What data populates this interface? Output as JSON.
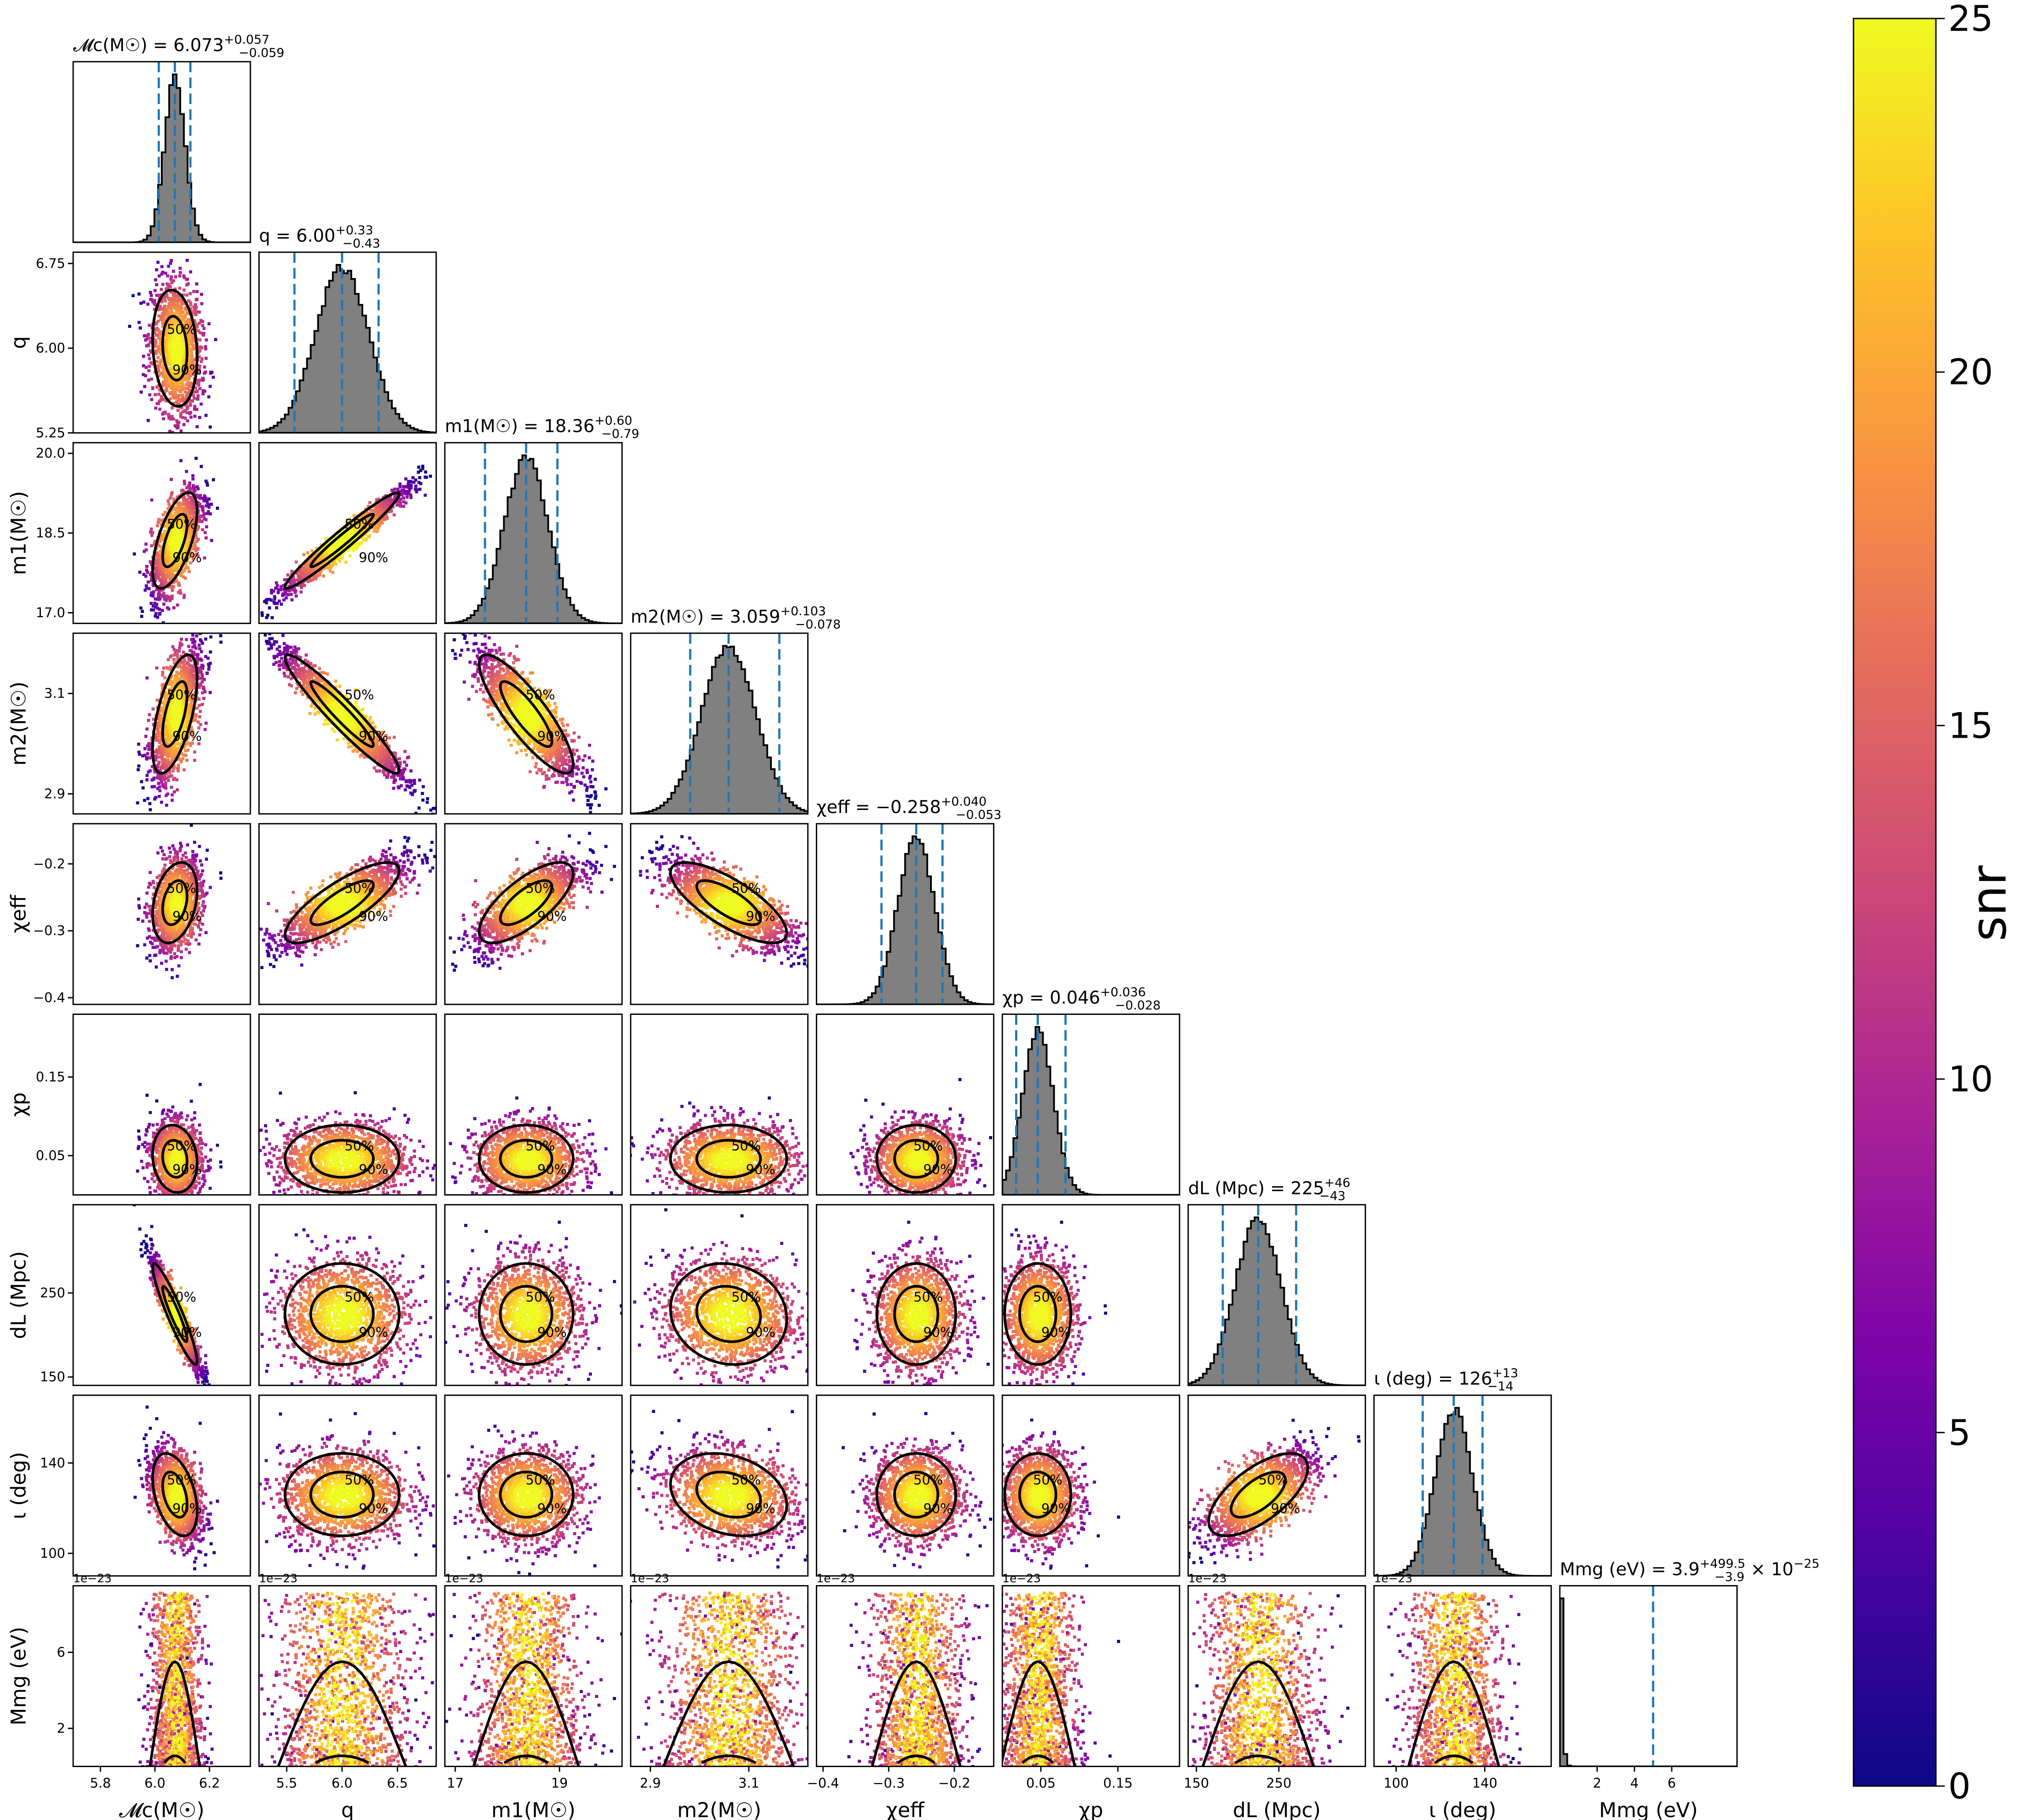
{
  "chart_data": {
    "type": "corner",
    "parameters": [
      {
        "key": "mc",
        "axis_label": "𝓜c(M☉)",
        "row_label": "",
        "title": "𝓜c(M☉) = 6.073",
        "plus": "+0.057",
        "minus": "−0.059",
        "median": 6.073,
        "lo": 6.014,
        "hi": 6.13,
        "range": [
          5.7,
          6.35
        ],
        "sigma": 0.038,
        "ticks": [
          {
            "v": 5.8,
            "t": "5.8"
          },
          {
            "v": 6.0,
            "t": "6.0"
          },
          {
            "v": 6.2,
            "t": "6.2"
          }
        ],
        "offset_text": ""
      },
      {
        "key": "q",
        "axis_label": "q",
        "row_label": "q",
        "title": "q = 6.00",
        "plus": "+0.33",
        "minus": "−0.43",
        "median": 6.0,
        "lo": 5.57,
        "hi": 6.33,
        "range": [
          5.25,
          6.85
        ],
        "sigma": 0.24,
        "ticks": [
          {
            "v": 5.5,
            "t": "5.5"
          },
          {
            "v": 6.0,
            "t": "6.0"
          },
          {
            "v": 6.5,
            "t": "6.5"
          }
        ],
        "row_ticks": [
          {
            "v": 5.25,
            "t": "5.25"
          },
          {
            "v": 6.0,
            "t": "6.00"
          },
          {
            "v": 6.75,
            "t": "6.75"
          }
        ],
        "offset_text": ""
      },
      {
        "key": "m1",
        "axis_label": "m1(M☉)",
        "row_label": "m1(M☉)",
        "title": "m1(M☉) = 18.36",
        "plus": "+0.60",
        "minus": "−0.79",
        "median": 18.36,
        "lo": 17.57,
        "hi": 18.96,
        "range": [
          16.8,
          20.2
        ],
        "sigma": 0.42,
        "ticks": [
          {
            "v": 17,
            "t": "17"
          },
          {
            "v": 19,
            "t": "19"
          }
        ],
        "row_ticks": [
          {
            "v": 17.0,
            "t": "17.0"
          },
          {
            "v": 18.5,
            "t": "18.5"
          },
          {
            "v": 20.0,
            "t": "20.0"
          }
        ],
        "offset_text": ""
      },
      {
        "key": "m2",
        "axis_label": "m2(M☉)",
        "row_label": "m2(M☉)",
        "title": "m2(M☉) = 3.059",
        "plus": "+0.103",
        "minus": "−0.078",
        "median": 3.059,
        "lo": 2.981,
        "hi": 3.162,
        "range": [
          2.86,
          3.22
        ],
        "sigma": 0.055,
        "ticks": [
          {
            "v": 2.9,
            "t": "2.9"
          },
          {
            "v": 3.1,
            "t": "3.1"
          }
        ],
        "row_ticks": [
          {
            "v": 2.9,
            "t": "2.9"
          },
          {
            "v": 3.1,
            "t": "3.1"
          }
        ],
        "offset_text": ""
      },
      {
        "key": "chi_eff",
        "axis_label": "χeff",
        "row_label": "χeff",
        "title": "χeff = −0.258",
        "plus": "+0.040",
        "minus": "−0.053",
        "median": -0.258,
        "lo": -0.311,
        "hi": -0.218,
        "range": [
          -0.41,
          -0.14
        ],
        "sigma": 0.028,
        "ticks": [
          {
            "v": -0.4,
            "t": "−0.4"
          },
          {
            "v": -0.3,
            "t": "−0.3"
          },
          {
            "v": -0.2,
            "t": "−0.2"
          }
        ],
        "row_ticks": [
          {
            "v": -0.4,
            "t": "−0.4"
          },
          {
            "v": -0.3,
            "t": "−0.3"
          },
          {
            "v": -0.2,
            "t": "−0.2"
          }
        ],
        "offset_text": ""
      },
      {
        "key": "chi_p",
        "axis_label": "χp",
        "row_label": "χp",
        "title": "χp = 0.046",
        "plus": "+0.036",
        "minus": "−0.028",
        "median": 0.046,
        "lo": 0.018,
        "hi": 0.082,
        "range": [
          0.0,
          0.23
        ],
        "sigma": 0.02,
        "ticks": [
          {
            "v": 0.05,
            "t": "0.05"
          },
          {
            "v": 0.15,
            "t": "0.15"
          }
        ],
        "row_ticks": [
          {
            "v": 0.05,
            "t": "0.05"
          },
          {
            "v": 0.15,
            "t": "0.15"
          }
        ],
        "offset_text": ""
      },
      {
        "key": "dL",
        "axis_label": "dL (Mpc)",
        "row_label": "dL (Mpc)",
        "title": "dL (Mpc) = 225",
        "plus": "+46",
        "minus": "−43",
        "median": 225,
        "lo": 182,
        "hi": 271,
        "range": [
          140,
          355
        ],
        "sigma": 28,
        "ticks": [
          {
            "v": 150,
            "t": "150"
          },
          {
            "v": 250,
            "t": "250"
          }
        ],
        "row_ticks": [
          {
            "v": 150,
            "t": "150"
          },
          {
            "v": 250,
            "t": "250"
          }
        ],
        "offset_text": ""
      },
      {
        "key": "iota",
        "axis_label": "ι (deg)",
        "row_label": "ι (deg)",
        "title": "ι (deg) = 126",
        "plus": "+13",
        "minus": "−14",
        "median": 126,
        "lo": 112,
        "hi": 139,
        "range": [
          90,
          170
        ],
        "sigma": 8.5,
        "ticks": [
          {
            "v": 100,
            "t": "100"
          },
          {
            "v": 140,
            "t": "140"
          }
        ],
        "row_ticks": [
          {
            "v": 100,
            "t": "100"
          },
          {
            "v": 140,
            "t": "140"
          }
        ],
        "offset_text": ""
      },
      {
        "key": "M_mg",
        "axis_label": "Mmg (eV)",
        "row_label": "Mmg (eV)",
        "title": "Mmg (eV) = 3.9",
        "plus": "+499.5",
        "minus": "−3.9",
        "title_suffix": "× 10",
        "title_exp": "−25",
        "median": 3.9e-25,
        "lo": 0,
        "hi": 5e-23,
        "range": [
          0,
          9.5e-23
        ],
        "sigma": 0,
        "ticks": [
          {
            "v": 2e-23,
            "t": "2"
          },
          {
            "v": 4e-23,
            "t": "4"
          },
          {
            "v": 6e-23,
            "t": "6"
          }
        ],
        "row_ticks": [
          {
            "v": 2e-23,
            "t": "2"
          },
          {
            "v": 6e-23,
            "t": "6"
          }
        ],
        "offset_text": "1e−23"
      }
    ],
    "correlations": {
      "mc|q": -0.15,
      "mc|m1": 0.62,
      "mc|m2": 0.6,
      "mc|chi_eff": 0.3,
      "mc|chi_p": -0.12,
      "mc|dL": -0.93,
      "mc|iota": -0.4,
      "q|m1": 0.97,
      "q|m2": -0.95,
      "q|chi_eff": 0.8,
      "q|chi_p": 0.0,
      "q|dL": 0.0,
      "q|iota": 0.0,
      "m1|m2": -0.85,
      "m1|chi_eff": 0.72,
      "m1|chi_p": 0.0,
      "m1|dL": 0.0,
      "m1|iota": 0.0,
      "m2|chi_eff": -0.75,
      "m2|chi_p": 0.0,
      "m2|dL": -0.1,
      "m2|iota": -0.25,
      "chi_eff|chi_p": 0.0,
      "chi_eff|dL": 0.0,
      "chi_eff|iota": 0.0,
      "chi_p|dL": 0.0,
      "chi_p|iota": 0.0,
      "dL|iota": 0.65
    },
    "contour_labels": [
      "50%",
      "90%"
    ],
    "colorbar": {
      "label": "snr",
      "min": 0,
      "max": 25,
      "ticks": [
        0,
        5,
        10,
        15,
        20,
        25
      ]
    },
    "colors": {
      "hist_fill": "#808080",
      "hist_edge": "#000000",
      "quantile_line": "#1f77b4",
      "contour": "#000000",
      "colormap": "plasma"
    }
  }
}
